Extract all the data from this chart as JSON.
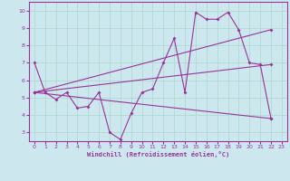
{
  "xlabel": "Windchill (Refroidissement éolien,°C)",
  "bg_color": "#cce8ee",
  "line_color": "#993399",
  "grid_color": "#aad8cc",
  "xlim": [
    -0.5,
    23.5
  ],
  "ylim": [
    2.5,
    10.5
  ],
  "xticks": [
    0,
    1,
    2,
    3,
    4,
    5,
    6,
    7,
    8,
    9,
    10,
    11,
    12,
    13,
    14,
    15,
    16,
    17,
    18,
    19,
    20,
    21,
    22,
    23
  ],
  "yticks": [
    3,
    4,
    5,
    6,
    7,
    8,
    9,
    10
  ],
  "series": [
    {
      "x": [
        0,
        1,
        2,
        3,
        4,
        5,
        6,
        7,
        8,
        9,
        10,
        11,
        12,
        13,
        14,
        15,
        16,
        17,
        18,
        19,
        20,
        21,
        22
      ],
      "y": [
        7.0,
        5.3,
        4.9,
        5.3,
        4.4,
        4.5,
        5.3,
        3.0,
        2.6,
        4.1,
        5.3,
        5.5,
        7.0,
        8.4,
        5.3,
        9.9,
        9.5,
        9.5,
        9.9,
        8.9,
        7.0,
        6.9,
        3.8
      ]
    },
    {
      "x": [
        0,
        22
      ],
      "y": [
        5.3,
        8.9
      ]
    },
    {
      "x": [
        0,
        22
      ],
      "y": [
        5.3,
        6.9
      ]
    },
    {
      "x": [
        0,
        22
      ],
      "y": [
        5.3,
        3.8
      ]
    }
  ]
}
